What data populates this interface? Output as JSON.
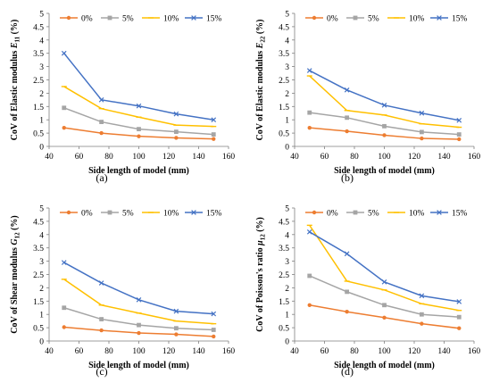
{
  "figure": {
    "captions": [
      "(a)",
      "(b)",
      "(c)",
      "(d)"
    ]
  },
  "chart_data": [
    {
      "type": "line",
      "caption": "(a)",
      "xlabel": "Side length of model (mm)",
      "ylabel_prefix": "CoV of Elastic modulus ",
      "ylabel_symbol": "E",
      "ylabel_sub": "11",
      "ylabel_suffix": " (%)",
      "xlim": [
        40,
        160
      ],
      "ylim": [
        0,
        5
      ],
      "xticks": [
        40,
        60,
        80,
        100,
        120,
        140,
        160
      ],
      "yticks": [
        0,
        0.5,
        1,
        1.5,
        2,
        2.5,
        3,
        3.5,
        4,
        4.5,
        5
      ],
      "ytick_labels": [
        "0",
        "0.5",
        "1",
        "1.5",
        "2",
        "2.5",
        "3",
        "3.5",
        "4",
        "4.5",
        "5"
      ],
      "grid": false,
      "legend_position": "top",
      "x": [
        50,
        75,
        100,
        125,
        150
      ],
      "series": [
        {
          "name": "0%",
          "color": "#ED7D31",
          "values": [
            0.7,
            0.5,
            0.38,
            0.32,
            0.28
          ]
        },
        {
          "name": "5%",
          "color": "#A5A5A5",
          "values": [
            1.45,
            0.92,
            0.65,
            0.55,
            0.45
          ]
        },
        {
          "name": "10%",
          "color": "#FFC000",
          "values": [
            2.25,
            1.42,
            1.1,
            0.8,
            0.75
          ]
        },
        {
          "name": "15%",
          "color": "#4472C4",
          "values": [
            3.5,
            1.75,
            1.52,
            1.22,
            1.0
          ]
        }
      ]
    },
    {
      "type": "line",
      "caption": "(b)",
      "xlabel": "Side length of model (mm)",
      "ylabel_prefix": "CoV of Elastic modulus ",
      "ylabel_symbol": "E",
      "ylabel_sub": "22",
      "ylabel_suffix": " (%)",
      "xlim": [
        40,
        160
      ],
      "ylim": [
        0,
        5
      ],
      "xticks": [
        40,
        60,
        80,
        100,
        120,
        140,
        160
      ],
      "yticks": [
        0,
        0.5,
        1,
        1.5,
        2,
        2.5,
        3,
        3.5,
        4,
        4.5,
        5
      ],
      "ytick_labels": [
        "0",
        "0.5",
        "1",
        "1.5",
        "2",
        "2.5",
        "3",
        "3.5",
        "4",
        "4.5",
        "5"
      ],
      "grid": false,
      "legend_position": "top",
      "x": [
        50,
        75,
        100,
        125,
        150
      ],
      "series": [
        {
          "name": "0%",
          "color": "#ED7D31",
          "values": [
            0.7,
            0.57,
            0.42,
            0.3,
            0.27
          ]
        },
        {
          "name": "5%",
          "color": "#A5A5A5",
          "values": [
            1.27,
            1.08,
            0.76,
            0.54,
            0.45
          ]
        },
        {
          "name": "10%",
          "color": "#FFC000",
          "values": [
            2.65,
            1.35,
            1.18,
            0.85,
            0.72
          ]
        },
        {
          "name": "15%",
          "color": "#4472C4",
          "values": [
            2.85,
            2.12,
            1.55,
            1.25,
            0.98
          ]
        }
      ]
    },
    {
      "type": "line",
      "caption": "(c)",
      "xlabel": "Side length of model (mm)",
      "ylabel_prefix": "CoV of Shear modulus ",
      "ylabel_symbol": "G",
      "ylabel_sub": "12",
      "ylabel_suffix": " (%)",
      "xlim": [
        40,
        160
      ],
      "ylim": [
        0,
        5
      ],
      "xticks": [
        40,
        60,
        80,
        100,
        120,
        140,
        160
      ],
      "yticks": [
        0,
        0.5,
        1,
        1.5,
        2,
        2.5,
        3,
        3.5,
        4,
        4.5,
        5
      ],
      "ytick_labels": [
        "0",
        "0.5",
        "1",
        "1.5",
        "2",
        "2.5",
        "3",
        "3.5",
        "4",
        "4.5",
        "5"
      ],
      "grid": false,
      "legend_position": "top",
      "x": [
        50,
        75,
        100,
        125,
        150
      ],
      "series": [
        {
          "name": "0%",
          "color": "#ED7D31",
          "values": [
            0.52,
            0.4,
            0.3,
            0.25,
            0.17
          ]
        },
        {
          "name": "5%",
          "color": "#A5A5A5",
          "values": [
            1.25,
            0.82,
            0.6,
            0.48,
            0.42
          ]
        },
        {
          "name": "10%",
          "color": "#FFC000",
          "values": [
            2.32,
            1.35,
            1.05,
            0.75,
            0.65
          ]
        },
        {
          "name": "15%",
          "color": "#4472C4",
          "values": [
            2.95,
            2.18,
            1.55,
            1.12,
            1.02
          ]
        }
      ]
    },
    {
      "type": "line",
      "caption": "(d)",
      "xlabel": "Side length of model (mm)",
      "ylabel_prefix": "CoV of Poisson's ratio ",
      "ylabel_symbol": "μ",
      "ylabel_sub": "12",
      "ylabel_suffix": " (%)",
      "xlim": [
        40,
        160
      ],
      "ylim": [
        0,
        5
      ],
      "xticks": [
        40,
        60,
        80,
        100,
        120,
        140,
        160
      ],
      "yticks": [
        0,
        0.5,
        1,
        1.5,
        2,
        2.5,
        3,
        3.5,
        4,
        4.5,
        5
      ],
      "ytick_labels": [
        "0",
        "0.5",
        "1",
        "1.5",
        "2",
        "2.5",
        "3",
        "3.5",
        "4",
        "4.5",
        "5"
      ],
      "grid": false,
      "legend_position": "top",
      "x": [
        50,
        75,
        100,
        125,
        150
      ],
      "series": [
        {
          "name": "0%",
          "color": "#ED7D31",
          "values": [
            1.35,
            1.1,
            0.88,
            0.65,
            0.48
          ]
        },
        {
          "name": "5%",
          "color": "#A5A5A5",
          "values": [
            2.45,
            1.85,
            1.35,
            1.0,
            0.9
          ]
        },
        {
          "name": "10%",
          "color": "#FFC000",
          "values": [
            4.35,
            2.25,
            1.92,
            1.4,
            1.15
          ]
        },
        {
          "name": "15%",
          "color": "#4472C4",
          "values": [
            4.1,
            3.28,
            2.22,
            1.7,
            1.48
          ]
        }
      ]
    }
  ]
}
